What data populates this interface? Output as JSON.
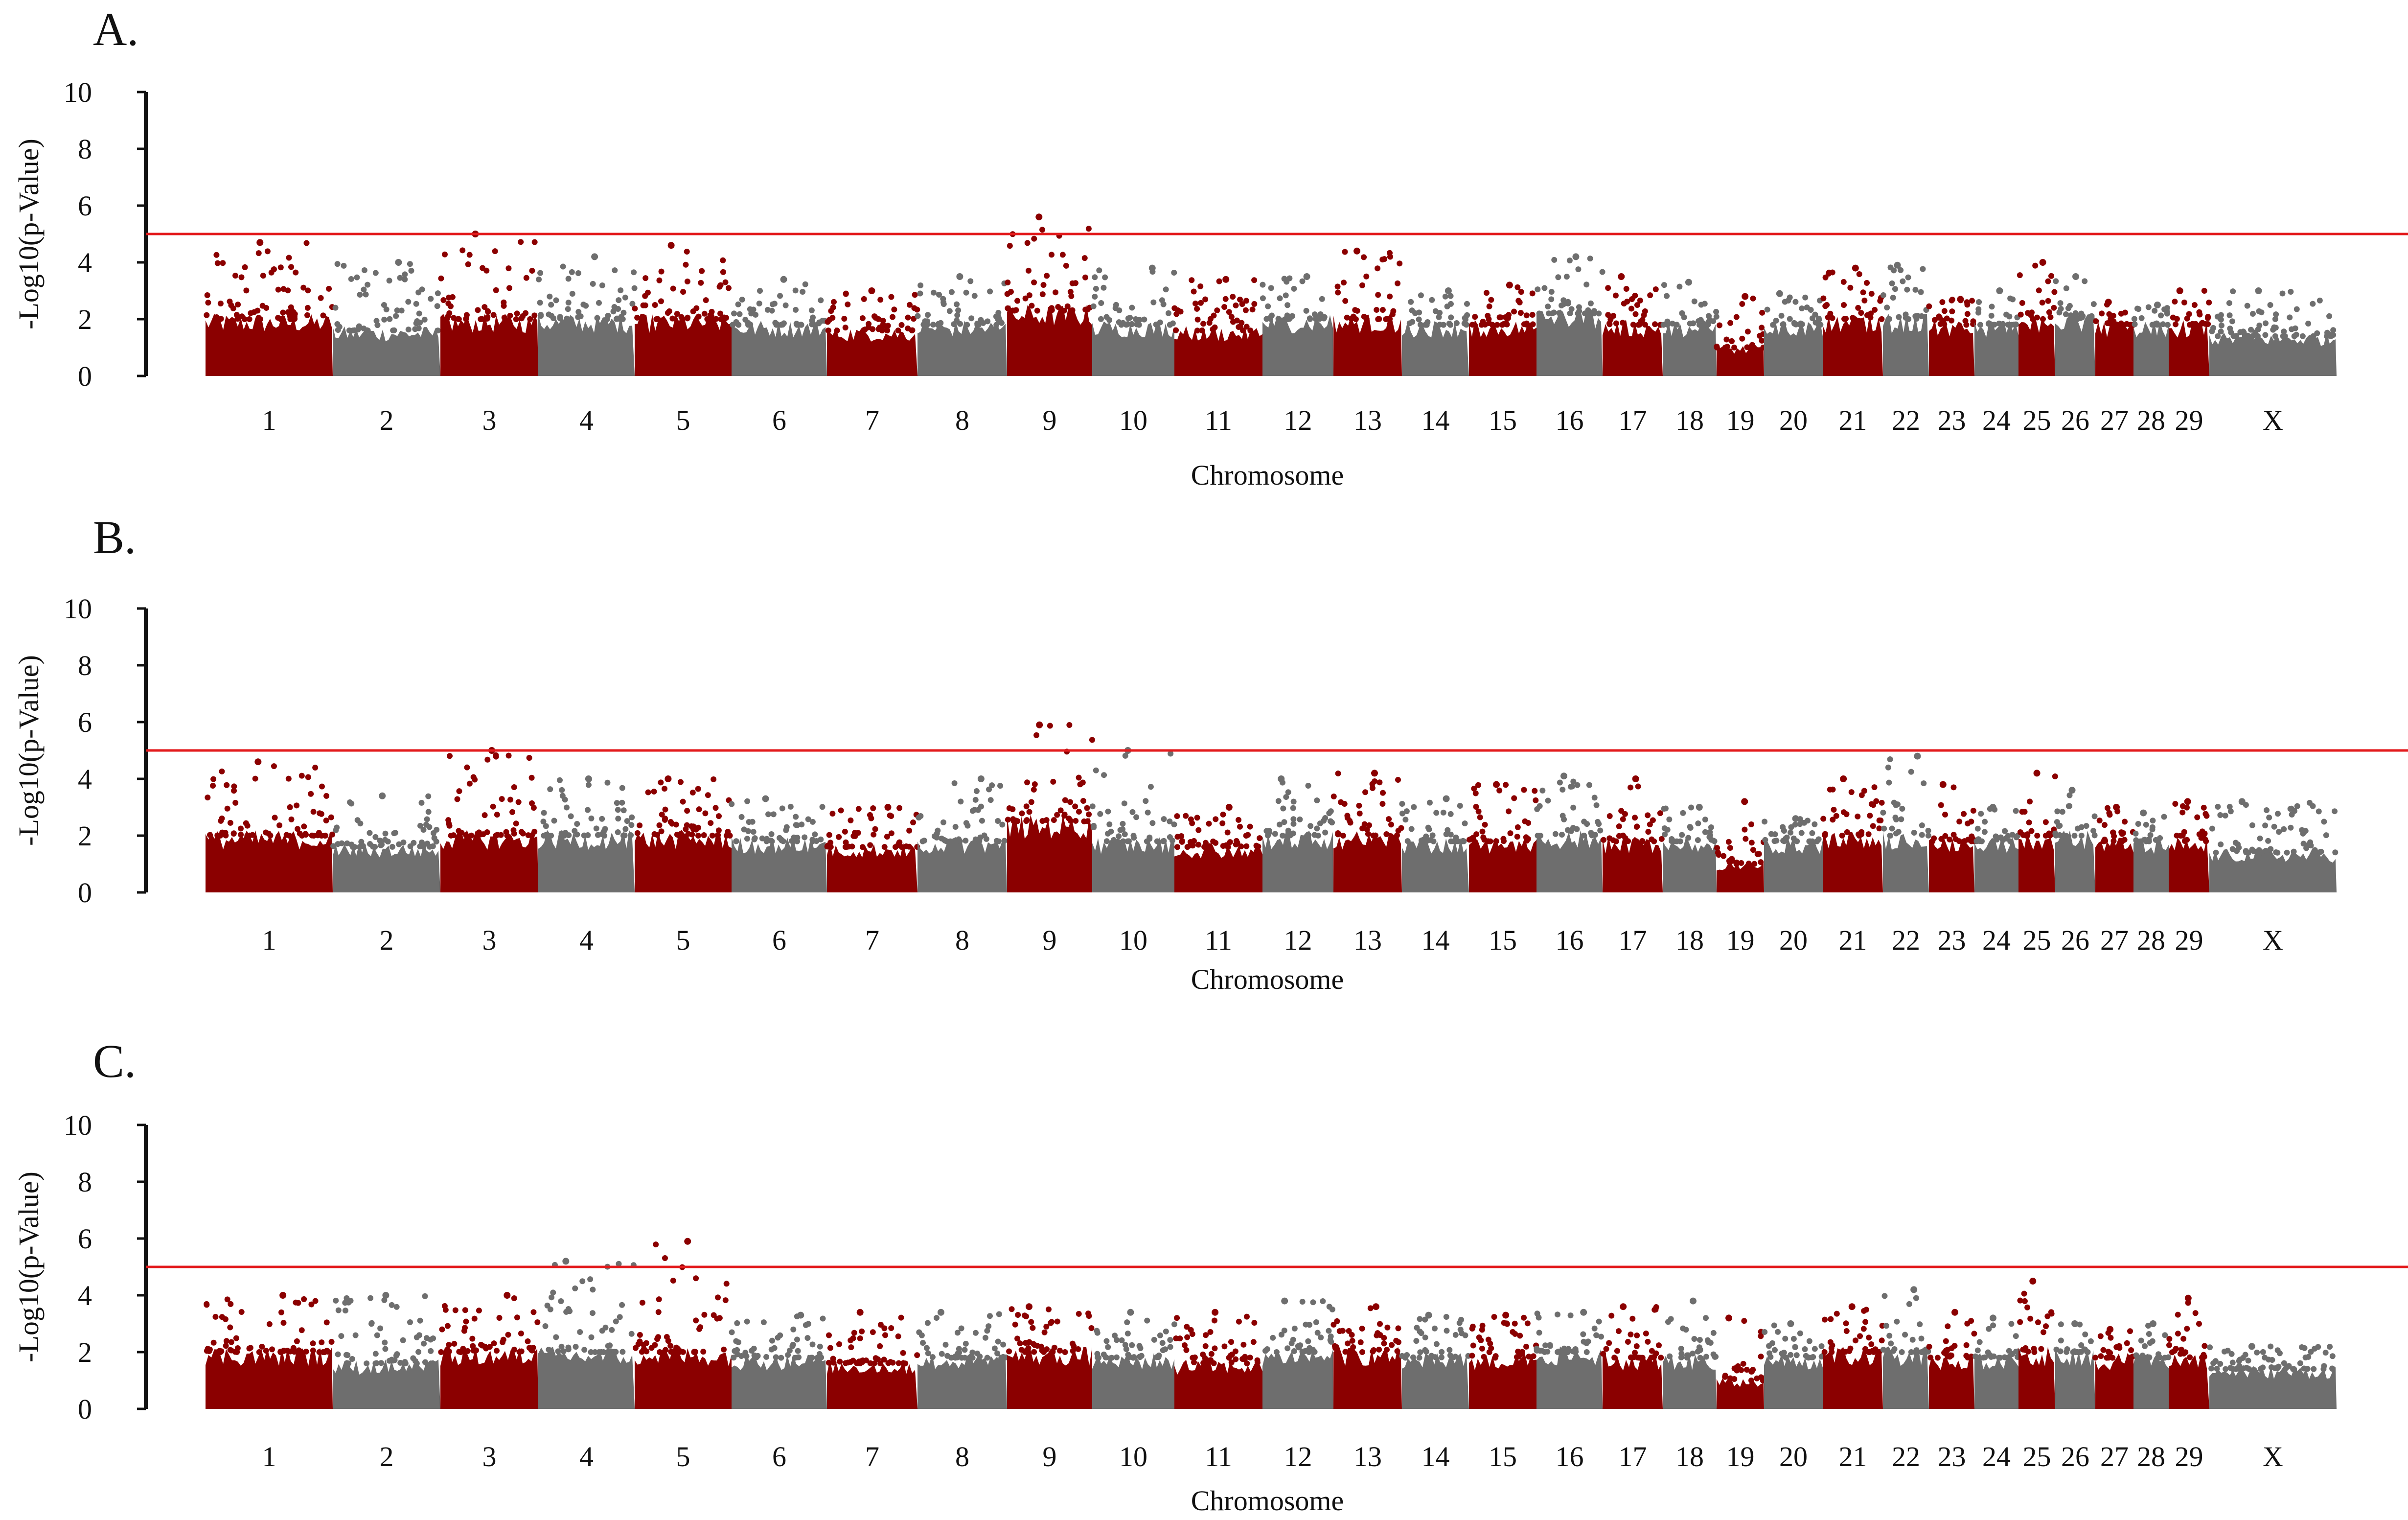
{
  "colors": {
    "odd_chromosome": "#8b0000",
    "even_chromosome": "#6e6e6e",
    "threshold_line": "#e31a1c",
    "axis": "#111111"
  },
  "chart_data": [
    {
      "panel": "A.",
      "type": "scatter",
      "ylabel": "-Log10(p-Value)",
      "xlabel": "Chromosome",
      "ylim": [
        0,
        10
      ],
      "yticks": [
        0,
        2,
        4,
        6,
        8,
        10
      ],
      "threshold": 5,
      "chromosomes": [
        {
          "label": "1",
          "base": 2.0,
          "peak": 4.7
        },
        {
          "label": "2",
          "base": 1.6,
          "peak": 4.0
        },
        {
          "label": "3",
          "base": 2.0,
          "peak": 5.0
        },
        {
          "label": "4",
          "base": 2.0,
          "peak": 4.2
        },
        {
          "label": "5",
          "base": 2.0,
          "peak": 4.6
        },
        {
          "label": "6",
          "base": 1.8,
          "peak": 3.4
        },
        {
          "label": "7",
          "base": 1.6,
          "peak": 3.0
        },
        {
          "label": "8",
          "base": 1.8,
          "peak": 3.5
        },
        {
          "label": "9",
          "base": 2.3,
          "peak": 5.6
        },
        {
          "label": "10",
          "base": 1.8,
          "peak": 3.8
        },
        {
          "label": "11",
          "base": 1.6,
          "peak": 3.4
        },
        {
          "label": "12",
          "base": 2.0,
          "peak": 3.5
        },
        {
          "label": "13",
          "base": 2.0,
          "peak": 4.4
        },
        {
          "label": "14",
          "base": 1.8,
          "peak": 3.0
        },
        {
          "label": "15",
          "base": 1.8,
          "peak": 3.2
        },
        {
          "label": "16",
          "base": 2.2,
          "peak": 4.2
        },
        {
          "label": "17",
          "base": 1.8,
          "peak": 3.5
        },
        {
          "label": "18",
          "base": 1.8,
          "peak": 3.3
        },
        {
          "label": "19",
          "base": 1.0,
          "peak": 2.8
        },
        {
          "label": "20",
          "base": 1.8,
          "peak": 2.9
        },
        {
          "label": "21",
          "base": 2.0,
          "peak": 3.8
        },
        {
          "label": "22",
          "base": 2.0,
          "peak": 3.9
        },
        {
          "label": "23",
          "base": 1.8,
          "peak": 2.7
        },
        {
          "label": "24",
          "base": 1.8,
          "peak": 3.0
        },
        {
          "label": "25",
          "base": 2.0,
          "peak": 4.0
        },
        {
          "label": "26",
          "base": 2.0,
          "peak": 3.5
        },
        {
          "label": "27",
          "base": 1.8,
          "peak": 2.6
        },
        {
          "label": "28",
          "base": 1.8,
          "peak": 2.5
        },
        {
          "label": "29",
          "base": 1.8,
          "peak": 3.0
        },
        {
          "label": "X",
          "base": 1.4,
          "peak": 3.0
        }
      ]
    },
    {
      "panel": "B.",
      "type": "scatter",
      "ylabel": "-Log10(p-Value)",
      "xlabel": "Chromosome",
      "ylim": [
        0,
        10
      ],
      "yticks": [
        0,
        2,
        4,
        6,
        8,
        10
      ],
      "threshold": 5,
      "chromosomes": [
        {
          "label": "1",
          "base": 2.0,
          "peak": 4.6
        },
        {
          "label": "2",
          "base": 1.6,
          "peak": 3.4
        },
        {
          "label": "3",
          "base": 2.0,
          "peak": 5.0
        },
        {
          "label": "4",
          "base": 2.0,
          "peak": 4.0
        },
        {
          "label": "5",
          "base": 2.0,
          "peak": 4.0
        },
        {
          "label": "6",
          "base": 1.8,
          "peak": 3.3
        },
        {
          "label": "7",
          "base": 1.6,
          "peak": 3.0
        },
        {
          "label": "8",
          "base": 1.8,
          "peak": 4.0
        },
        {
          "label": "9",
          "base": 2.5,
          "peak": 5.9
        },
        {
          "label": "10",
          "base": 1.8,
          "peak": 5.0
        },
        {
          "label": "11",
          "base": 1.6,
          "peak": 3.0
        },
        {
          "label": "12",
          "base": 2.0,
          "peak": 4.0
        },
        {
          "label": "13",
          "base": 2.0,
          "peak": 4.2
        },
        {
          "label": "14",
          "base": 1.8,
          "peak": 3.3
        },
        {
          "label": "15",
          "base": 1.8,
          "peak": 3.8
        },
        {
          "label": "16",
          "base": 2.0,
          "peak": 4.1
        },
        {
          "label": "17",
          "base": 1.8,
          "peak": 4.0
        },
        {
          "label": "18",
          "base": 1.8,
          "peak": 3.0
        },
        {
          "label": "19",
          "base": 1.0,
          "peak": 3.2
        },
        {
          "label": "20",
          "base": 1.8,
          "peak": 2.6
        },
        {
          "label": "21",
          "base": 2.0,
          "peak": 4.0
        },
        {
          "label": "22",
          "base": 2.0,
          "peak": 4.8
        },
        {
          "label": "23",
          "base": 1.8,
          "peak": 3.8
        },
        {
          "label": "24",
          "base": 1.8,
          "peak": 3.0
        },
        {
          "label": "25",
          "base": 2.0,
          "peak": 4.2
        },
        {
          "label": "26",
          "base": 2.0,
          "peak": 3.6
        },
        {
          "label": "27",
          "base": 1.8,
          "peak": 3.0
        },
        {
          "label": "28",
          "base": 1.8,
          "peak": 2.8
        },
        {
          "label": "29",
          "base": 1.8,
          "peak": 3.2
        },
        {
          "label": "X",
          "base": 1.4,
          "peak": 3.2
        }
      ]
    },
    {
      "panel": "C.",
      "type": "scatter",
      "ylabel": "-Log10(p-Value)",
      "xlabel": "Chromosome",
      "ylim": [
        0,
        10
      ],
      "yticks": [
        0,
        2,
        4,
        6,
        8,
        10
      ],
      "threshold": 5,
      "chromosomes": [
        {
          "label": "1",
          "base": 2.0,
          "peak": 4.0
        },
        {
          "label": "2",
          "base": 1.6,
          "peak": 4.0
        },
        {
          "label": "3",
          "base": 2.0,
          "peak": 4.0
        },
        {
          "label": "4",
          "base": 2.0,
          "peak": 5.2
        },
        {
          "label": "5",
          "base": 2.0,
          "peak": 5.9
        },
        {
          "label": "6",
          "base": 1.8,
          "peak": 3.3
        },
        {
          "label": "7",
          "base": 1.6,
          "peak": 3.4
        },
        {
          "label": "8",
          "base": 1.8,
          "peak": 3.4
        },
        {
          "label": "9",
          "base": 2.0,
          "peak": 3.6
        },
        {
          "label": "10",
          "base": 1.8,
          "peak": 3.4
        },
        {
          "label": "11",
          "base": 1.6,
          "peak": 3.4
        },
        {
          "label": "12",
          "base": 2.0,
          "peak": 3.8
        },
        {
          "label": "13",
          "base": 2.0,
          "peak": 3.6
        },
        {
          "label": "14",
          "base": 1.8,
          "peak": 3.3
        },
        {
          "label": "15",
          "base": 1.8,
          "peak": 3.3
        },
        {
          "label": "16",
          "base": 2.0,
          "peak": 3.4
        },
        {
          "label": "17",
          "base": 1.8,
          "peak": 3.6
        },
        {
          "label": "18",
          "base": 1.8,
          "peak": 3.8
        },
        {
          "label": "19",
          "base": 1.0,
          "peak": 3.2
        },
        {
          "label": "20",
          "base": 1.8,
          "peak": 3.0
        },
        {
          "label": "21",
          "base": 2.0,
          "peak": 3.6
        },
        {
          "label": "22",
          "base": 2.0,
          "peak": 4.2
        },
        {
          "label": "23",
          "base": 1.8,
          "peak": 3.4
        },
        {
          "label": "24",
          "base": 1.8,
          "peak": 3.2
        },
        {
          "label": "25",
          "base": 2.0,
          "peak": 4.5
        },
        {
          "label": "26",
          "base": 2.0,
          "peak": 3.0
        },
        {
          "label": "27",
          "base": 1.8,
          "peak": 2.8
        },
        {
          "label": "28",
          "base": 1.8,
          "peak": 3.0
        },
        {
          "label": "29",
          "base": 1.8,
          "peak": 3.9
        },
        {
          "label": "X",
          "base": 1.4,
          "peak": 2.2
        }
      ]
    }
  ]
}
